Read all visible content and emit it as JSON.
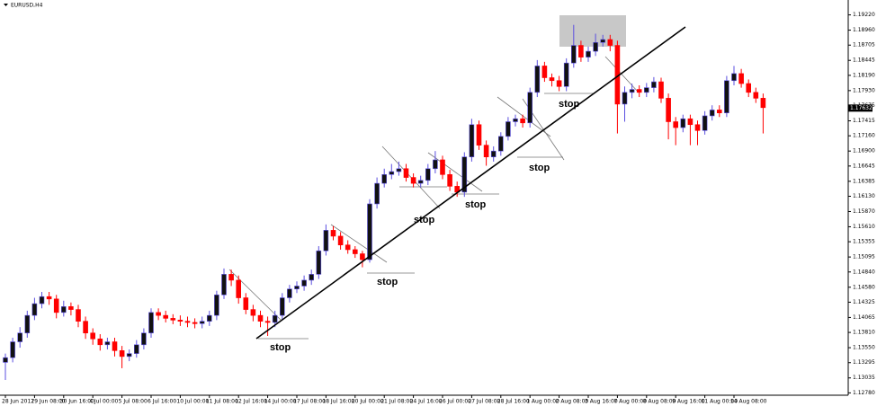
{
  "chart_data": {
    "type": "candlestick",
    "title": "EURUSD,H4",
    "categories": [
      "28 Jun 2017",
      null,
      null,
      null,
      "29 Jun 08:00",
      null,
      null,
      null,
      "30 Jun 16:00",
      null,
      null,
      null,
      "4 Jul 00:00",
      null,
      null,
      null,
      "5 Jul 08:00",
      null,
      null,
      null,
      "6 Jul 16:00",
      null,
      null,
      null,
      "10 Jul 00:00",
      null,
      null,
      null,
      "11 Jul 08:00",
      null,
      null,
      null,
      "12 Jul 16:00",
      null,
      null,
      null,
      "14 Jul 00:00",
      null,
      null,
      null,
      "17 Jul 08:00",
      null,
      null,
      null,
      "18 Jul 16:00",
      null,
      null,
      null,
      "20 Jul 00:00",
      null,
      null,
      null,
      "21 Jul 08:00",
      null,
      null,
      null,
      "24 Jul 16:00",
      null,
      null,
      null,
      "26 Jul 00:00",
      null,
      null,
      null,
      "27 Jul 08:00",
      null,
      null,
      null,
      "28 Jul 16:00",
      null,
      null,
      null,
      "1 Aug 00:00",
      null,
      null,
      null,
      "2 Aug 08:00",
      null,
      null,
      null,
      "3 Aug 16:00",
      null,
      null,
      null,
      "7 Aug 00:00",
      null,
      null,
      null,
      "8 Aug 08:00",
      null,
      null,
      null,
      "9 Aug 16:00",
      null,
      null,
      null,
      "11 Aug 00:00",
      null,
      null,
      null,
      "14 Aug 08:00",
      null,
      null,
      null,
      null
    ],
    "open": [
      1.133,
      1.1338,
      1.1365,
      1.138,
      1.141,
      1.143,
      1.1442,
      1.1438,
      1.1415,
      1.1425,
      1.142,
      1.14,
      1.138,
      1.137,
      1.136,
      1.1365,
      1.135,
      1.134,
      1.1345,
      1.136,
      1.138,
      1.1415,
      1.141,
      1.1405,
      1.1402,
      1.14,
      1.1398,
      1.1396,
      1.14,
      1.141,
      1.1445,
      1.148,
      1.147,
      1.144,
      1.142,
      1.141,
      1.14,
      1.1398,
      1.141,
      1.144,
      1.1455,
      1.146,
      1.147,
      1.148,
      1.152,
      1.1555,
      1.1545,
      1.153,
      1.1522,
      1.1515,
      1.1505,
      1.16,
      1.1635,
      1.165,
      1.1655,
      1.166,
      1.1645,
      1.1635,
      1.164,
      1.166,
      1.1675,
      1.165,
      1.163,
      1.162,
      1.168,
      1.1735,
      1.17,
      1.168,
      1.169,
      1.1715,
      1.174,
      1.1745,
      1.1738,
      1.179,
      1.1835,
      1.1815,
      1.181,
      1.18,
      1.184,
      1.187,
      1.185,
      1.186,
      1.1875,
      1.188,
      1.187,
      1.177,
      1.179,
      1.1795,
      1.179,
      1.1798,
      1.1808,
      1.178,
      1.174,
      1.173,
      1.1745,
      1.1735,
      1.1725,
      1.175,
      1.176,
      1.1755,
      1.181,
      1.1822,
      1.1805,
      1.179,
      1.178
    ],
    "high": [
      1.1345,
      1.1372,
      1.139,
      1.1418,
      1.144,
      1.145,
      1.145,
      1.1445,
      1.1435,
      1.1432,
      1.1428,
      1.1408,
      1.1388,
      1.1378,
      1.1372,
      1.1372,
      1.1358,
      1.1352,
      1.1368,
      1.1388,
      1.1422,
      1.1422,
      1.1418,
      1.1412,
      1.141,
      1.1408,
      1.1405,
      1.1408,
      1.1418,
      1.1452,
      1.149,
      1.1488,
      1.1478,
      1.1448,
      1.1428,
      1.1418,
      1.1408,
      1.1418,
      1.1448,
      1.1462,
      1.1468,
      1.1478,
      1.1488,
      1.1528,
      1.1565,
      1.1562,
      1.1552,
      1.1538,
      1.1528,
      1.152,
      1.1608,
      1.1645,
      1.166,
      1.1668,
      1.1672,
      1.1668,
      1.1652,
      1.1648,
      1.1668,
      1.169,
      1.1682,
      1.1658,
      1.1638,
      1.1688,
      1.1745,
      1.1742,
      1.1708,
      1.1698,
      1.1722,
      1.1748,
      1.1752,
      1.1752,
      1.1798,
      1.1845,
      1.1842,
      1.1822,
      1.1818,
      1.1848,
      1.1905,
      1.1878,
      1.1868,
      1.189,
      1.1888,
      1.1888,
      1.1878,
      1.18,
      1.1805,
      1.1802,
      1.1806,
      1.1816,
      1.1815,
      1.1788,
      1.1748,
      1.1752,
      1.1752,
      1.1742,
      1.1758,
      1.1768,
      1.1768,
      1.1818,
      1.1835,
      1.183,
      1.1812,
      1.1798,
      1.1788
    ],
    "low": [
      1.13,
      1.133,
      1.1355,
      1.1372,
      1.1402,
      1.1422,
      1.1428,
      1.1405,
      1.1408,
      1.141,
      1.139,
      1.137,
      1.136,
      1.135,
      1.1352,
      1.134,
      1.132,
      1.1332,
      1.1338,
      1.1352,
      1.1372,
      1.1402,
      1.1398,
      1.1395,
      1.1392,
      1.139,
      1.1388,
      1.1388,
      1.1392,
      1.1402,
      1.1438,
      1.146,
      1.143,
      1.1412,
      1.14,
      1.139,
      1.1375,
      1.139,
      1.1402,
      1.1432,
      1.1448,
      1.1452,
      1.1462,
      1.1472,
      1.1512,
      1.1538,
      1.1522,
      1.1515,
      1.1508,
      1.1492,
      1.15,
      1.1592,
      1.1628,
      1.1642,
      1.1648,
      1.1638,
      1.1628,
      1.1628,
      1.1632,
      1.1652,
      1.1642,
      1.1622,
      1.1612,
      1.1612,
      1.1672,
      1.1692,
      1.1665,
      1.1672,
      1.1682,
      1.1708,
      1.1732,
      1.173,
      1.173,
      1.1782,
      1.1808,
      1.18,
      1.1792,
      1.1792,
      1.1832,
      1.1842,
      1.1842,
      1.1852,
      1.1868,
      1.186,
      1.172,
      1.174,
      1.178,
      1.1782,
      1.1782,
      1.179,
      1.1772,
      1.171,
      1.17,
      1.1722,
      1.17,
      1.17,
      1.1718,
      1.1742,
      1.1748,
      1.1748,
      1.1802,
      1.1798,
      1.1782,
      1.1772,
      1.172
    ],
    "close": [
      1.1338,
      1.1365,
      1.138,
      1.141,
      1.143,
      1.1442,
      1.1438,
      1.1415,
      1.1425,
      1.142,
      1.14,
      1.138,
      1.137,
      1.136,
      1.1365,
      1.135,
      1.134,
      1.1345,
      1.136,
      1.138,
      1.1415,
      1.141,
      1.1405,
      1.1402,
      1.14,
      1.1398,
      1.1396,
      1.14,
      1.141,
      1.1445,
      1.148,
      1.147,
      1.144,
      1.142,
      1.141,
      1.14,
      1.1398,
      1.141,
      1.144,
      1.1455,
      1.146,
      1.147,
      1.148,
      1.152,
      1.1555,
      1.1545,
      1.153,
      1.1522,
      1.1515,
      1.1505,
      1.16,
      1.1635,
      1.165,
      1.1655,
      1.166,
      1.1645,
      1.1635,
      1.164,
      1.166,
      1.1675,
      1.165,
      1.163,
      1.162,
      1.168,
      1.1735,
      1.17,
      1.168,
      1.169,
      1.1715,
      1.174,
      1.1745,
      1.1738,
      1.179,
      1.1835,
      1.1815,
      1.181,
      1.18,
      1.184,
      1.187,
      1.185,
      1.186,
      1.1875,
      1.188,
      1.187,
      1.177,
      1.179,
      1.1795,
      1.179,
      1.1798,
      1.1808,
      1.178,
      1.174,
      1.173,
      1.1745,
      1.1735,
      1.1725,
      1.175,
      1.176,
      1.1755,
      1.181,
      1.1822,
      1.1805,
      1.179,
      1.178,
      1.1764
    ],
    "up_color": "#5b4fe0",
    "up_body": "#111111",
    "down_color": "#ff0000",
    "ylim": [
      1.1274,
      1.1929
    ],
    "yticks": [
      {
        "value": 1.1922,
        "label": "1.19220"
      },
      {
        "value": 1.1896,
        "label": "1.18960"
      },
      {
        "value": 1.18705,
        "label": "1.18705"
      },
      {
        "value": 1.18445,
        "label": "1.18445"
      },
      {
        "value": 1.1819,
        "label": "1.18190"
      },
      {
        "value": 1.1793,
        "label": "1.17930"
      },
      {
        "value": 1.17675,
        "label": "1.17675"
      },
      {
        "value": 1.17415,
        "label": "1.17415"
      },
      {
        "value": 1.1716,
        "label": "1.17160"
      },
      {
        "value": 1.169,
        "label": "1.16900"
      },
      {
        "value": 1.16645,
        "label": "1.16645"
      },
      {
        "value": 1.16385,
        "label": "1.16385"
      },
      {
        "value": 1.1613,
        "label": "1.16130"
      },
      {
        "value": 1.1587,
        "label": "1.15870"
      },
      {
        "value": 1.1561,
        "label": "1.15610"
      },
      {
        "value": 1.15355,
        "label": "1.15355"
      },
      {
        "value": 1.15095,
        "label": "1.15095"
      },
      {
        "value": 1.1484,
        "label": "1.14840"
      },
      {
        "value": 1.1458,
        "label": "1.14580"
      },
      {
        "value": 1.14325,
        "label": "1.14325"
      },
      {
        "value": 1.14065,
        "label": "1.14065"
      },
      {
        "value": 1.1381,
        "label": "1.13810"
      },
      {
        "value": 1.1355,
        "label": "1.13550"
      },
      {
        "value": 1.13295,
        "label": "1.13295"
      },
      {
        "value": 1.13035,
        "label": "1.13035"
      },
      {
        "value": 1.1278,
        "label": "1.12780"
      }
    ],
    "last_price": 1.17632,
    "annotations": [
      "stop",
      "stop",
      "stop",
      "stop",
      "stop",
      "stop"
    ]
  }
}
